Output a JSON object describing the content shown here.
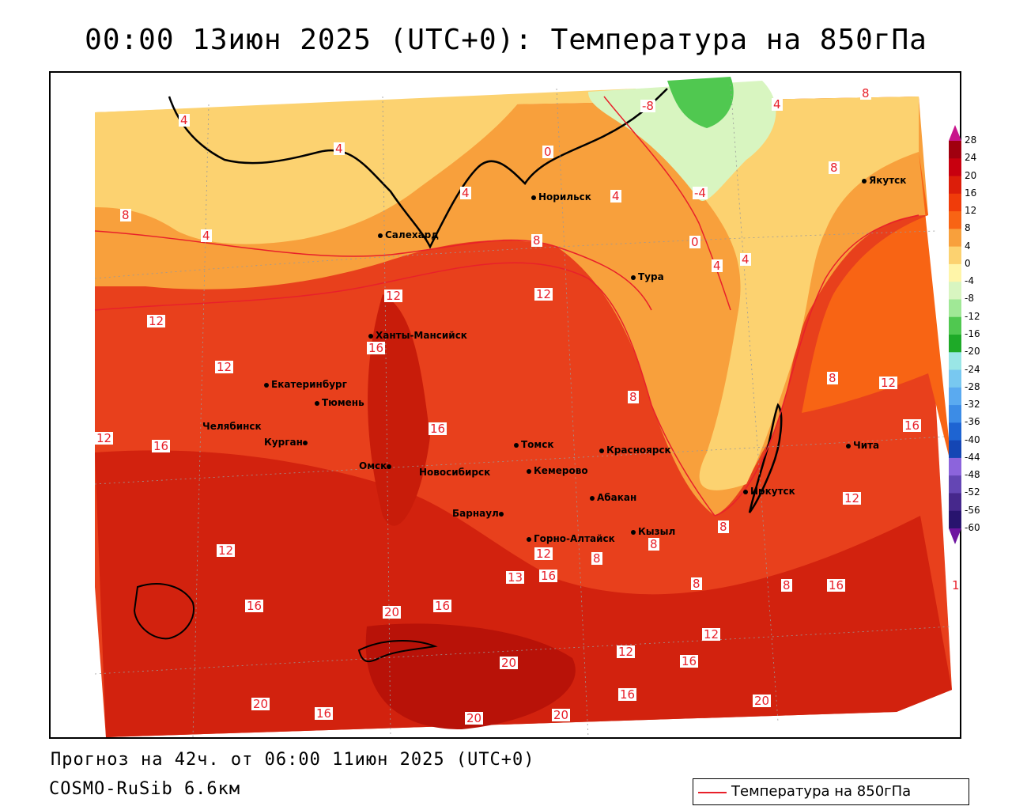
{
  "title": "00:00 13июн 2025 (UTC+0): Температура на 850гПа",
  "footer": {
    "forecast": "Прогноз на 42ч. от 06:00 11июн 2025 (UTC+0)",
    "model": "COSMO-RuSib 6.6км"
  },
  "legend": {
    "label": "Температура на 850гПа",
    "color": "#e8202a"
  },
  "colorbar": {
    "ticks": [
      "28",
      "24",
      "20",
      "16",
      "12",
      "8",
      "4",
      "0",
      "-4",
      "-8",
      "-12",
      "-16",
      "-20",
      "-24",
      "-28",
      "-32",
      "-36",
      "-40",
      "-44",
      "-48",
      "-52",
      "-56",
      "-60"
    ],
    "colors": [
      "#a0000f",
      "#c8000f",
      "#dc1e0a",
      "#f03c0a",
      "#f86414",
      "#f8a03c",
      "#fcd270",
      "#fff5a8",
      "#d8f5c0",
      "#a0e896",
      "#50c850",
      "#1eaa28",
      "#9ae6e6",
      "#78c8f0",
      "#5aaaf0",
      "#3c8ce6",
      "#1e64d2",
      "#1446b4",
      "#8c64dc",
      "#6446b4",
      "#46288c",
      "#28146e"
    ]
  },
  "cities": [
    {
      "name": "Норильск"
    },
    {
      "name": "Якутск"
    },
    {
      "name": "Салехард"
    },
    {
      "name": "Тура"
    },
    {
      "name": "Ханты-Мансийск"
    },
    {
      "name": "Екатеринбург"
    },
    {
      "name": "Тюмень"
    },
    {
      "name": "Челябинск"
    },
    {
      "name": "Курган"
    },
    {
      "name": "Омск"
    },
    {
      "name": "Томск"
    },
    {
      "name": "Красноярск"
    },
    {
      "name": "Новосибирск"
    },
    {
      "name": "Кемерово"
    },
    {
      "name": "Барнаул"
    },
    {
      "name": "Абакан"
    },
    {
      "name": "Горно-Алтайск"
    },
    {
      "name": "Кызыл"
    },
    {
      "name": "Иркутск"
    },
    {
      "name": "Чита"
    }
  ],
  "contour_labels": [
    "4",
    "4",
    "0",
    "4",
    "4",
    "8",
    "8",
    "-8",
    "4",
    "-4",
    "0",
    "8",
    "4",
    "4",
    "4",
    "8",
    "12",
    "12",
    "12",
    "16",
    "12",
    "12",
    "16",
    "16",
    "12",
    "8",
    "8",
    "12",
    "12",
    "16",
    "16",
    "8",
    "8",
    "8",
    "16",
    "20",
    "16",
    "8",
    "8",
    "12",
    "12",
    "16",
    "20",
    "16",
    "20",
    "20",
    "16",
    "20",
    "20",
    "16",
    "13",
    "16",
    "12"
  ]
}
